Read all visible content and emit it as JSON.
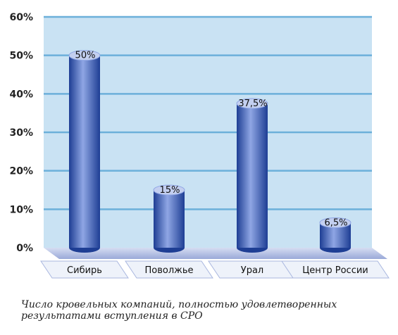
{
  "chart_data": {
    "type": "bar",
    "categories": [
      "Сибирь",
      "Поволжье",
      "Урал",
      "Центр России"
    ],
    "values": [
      50,
      15,
      37.5,
      6.5
    ],
    "value_labels": [
      "50%",
      "15%",
      "37,5%",
      "6,5%"
    ],
    "y_ticks": [
      "0%",
      "10%",
      "20%",
      "30%",
      "40%",
      "50%",
      "60%"
    ],
    "ylim": [
      0,
      60
    ],
    "grid": true,
    "legend": "none",
    "bar_style": "3d-cylinder",
    "colors": {
      "plot_background": "#c9e2f3",
      "gridline": "#6cb0da",
      "bar_dark": "#1e3e94",
      "bar_light": "#8fa6e4",
      "floor": "#b5c1e6",
      "label_box": "#eef2fa"
    }
  },
  "caption": "Число кровельных компаний, полностью удовлетворенных результатами вступления в СРО"
}
